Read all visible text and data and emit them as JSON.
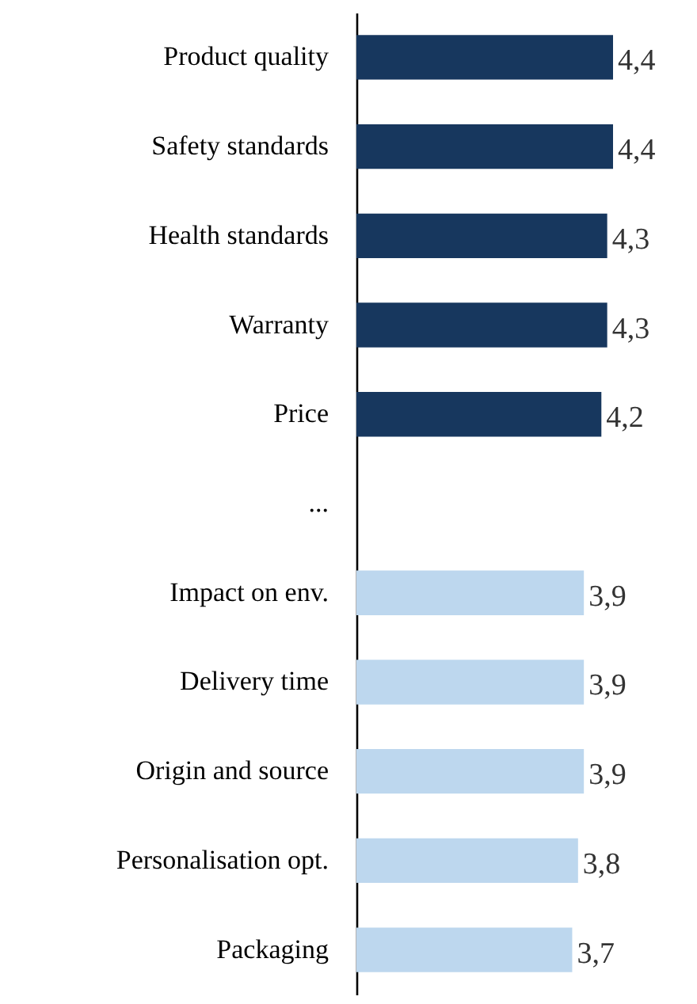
{
  "chart_data": {
    "type": "bar",
    "orientation": "horizontal",
    "categories": [
      "Product quality",
      "Safety standards",
      "Health standards",
      "Warranty",
      "Price",
      "...",
      "Impact on env.",
      "Delivery time",
      "Origin and source",
      "Personalisation opt.",
      "Packaging"
    ],
    "values": [
      4.4,
      4.4,
      4.3,
      4.3,
      4.2,
      null,
      3.9,
      3.9,
      3.9,
      3.8,
      3.7
    ],
    "colors": [
      "#17375e",
      "#17375e",
      "#17375e",
      "#17375e",
      "#17375e",
      null,
      "#bdd7ee",
      "#bdd7ee",
      "#bdd7ee",
      "#bdd7ee",
      "#bdd7ee"
    ],
    "value_labels": [
      "4,4",
      "4,4",
      "4,3",
      "4,3",
      "4,2",
      null,
      "3,9",
      "3,9",
      "3,9",
      "3,8",
      "3,7"
    ]
  }
}
